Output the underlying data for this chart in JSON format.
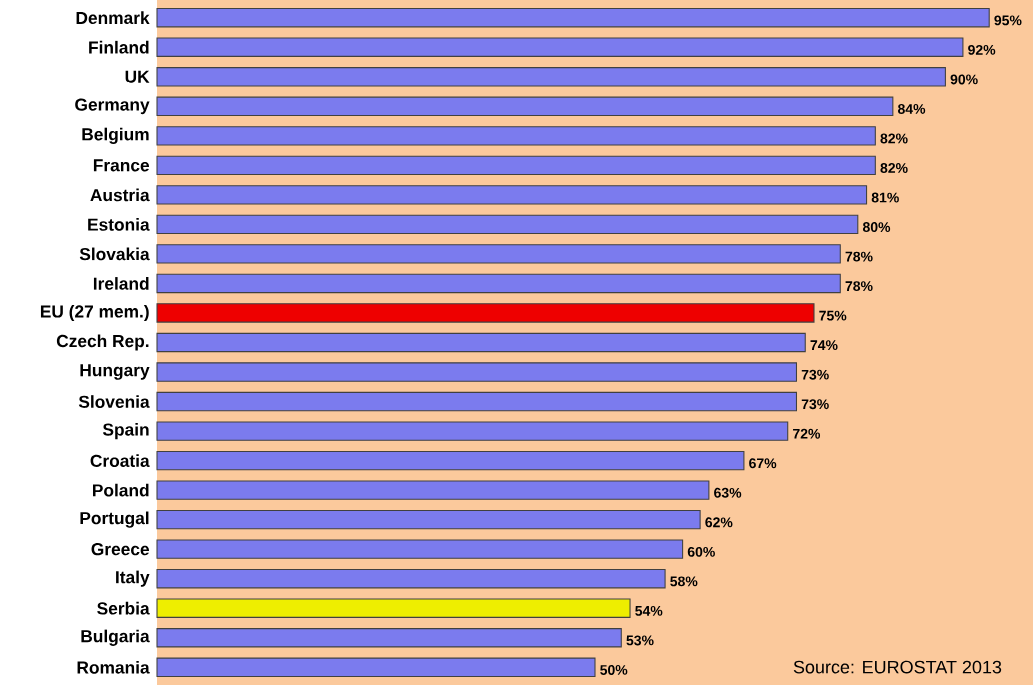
{
  "chart_data": {
    "type": "bar",
    "orientation": "horizontal",
    "categories": [
      "Denmark",
      "Finland",
      "UK",
      "Germany",
      "Belgium",
      "France",
      "Austria",
      "Estonia",
      "Slovakia",
      "Ireland",
      "EU (27 mem.)",
      "Czech Rep.",
      "Hungary",
      "Slovenia",
      "Spain",
      "Croatia",
      "Poland",
      "Portugal",
      "Greece",
      "Italy",
      "Serbia",
      "Bulgaria",
      "Romania"
    ],
    "values": [
      95,
      92,
      90,
      84,
      82,
      82,
      81,
      80,
      78,
      78,
      75,
      74,
      73,
      73,
      72,
      67,
      63,
      62,
      60,
      58,
      54,
      53,
      50
    ],
    "value_labels": [
      "95%",
      "92%",
      "90%",
      "84%",
      "82%",
      "82%",
      "81%",
      "80%",
      "78%",
      "78%",
      "75%",
      "74%",
      "73%",
      "73%",
      "72%",
      "67%",
      "63%",
      "62%",
      "60%",
      "58%",
      "54%",
      "53%",
      "50%"
    ],
    "colors": [
      "#7b7bee",
      "#7b7bee",
      "#7b7bee",
      "#7b7bee",
      "#7b7bee",
      "#7b7bee",
      "#7b7bee",
      "#7b7bee",
      "#7b7bee",
      "#7b7bee",
      "#ee0000",
      "#7b7bee",
      "#7b7bee",
      "#7b7bee",
      "#7b7bee",
      "#7b7bee",
      "#7b7bee",
      "#7b7bee",
      "#7b7bee",
      "#7b7bee",
      "#eeee00",
      "#7b7bee",
      "#7b7bee"
    ],
    "xlim": [
      0,
      100
    ],
    "annotations": [
      "Source: EUROSTAT 2013"
    ]
  }
}
